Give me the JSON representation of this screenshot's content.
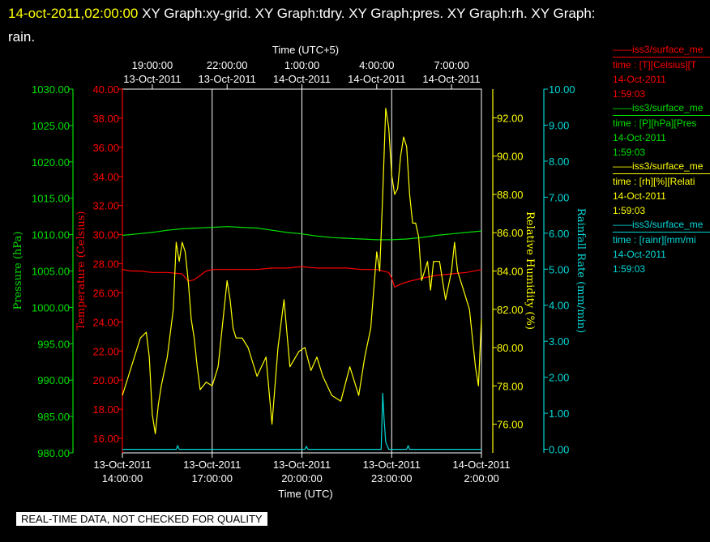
{
  "header": {
    "timestamp": "14-oct-2011,02:00:00",
    "titles": "XY Graph:xy-grid.  XY Graph:tdry.  XY Graph:pres.  XY Graph:rh.  XY Graph:",
    "titles_cont": "rain."
  },
  "footer_badge": "REAL-TIME DATA, NOT CHECKED FOR QUALITY",
  "colors": {
    "pressure": "#00e000",
    "temperature": "#ff0000",
    "humidity": "#ffff00",
    "rain": "#00d8d8",
    "grid": "#ffffff",
    "background": "#000000"
  },
  "legend": [
    {
      "line1": "iss3/surface_me",
      "line2": "time : [T][Celsius][T",
      "line3": "14-Oct-2011",
      "line4": "1:59:03",
      "color": "#ff0000"
    },
    {
      "line1": "iss3/surface_me",
      "line2": "time : [P][hPa][Pres",
      "line3": "14-Oct-2011",
      "line4": "1:59:03",
      "color": "#00e000"
    },
    {
      "line1": "iss3/surface_me",
      "line2": "time : [rh][%][Relati",
      "line3": "14-Oct-2011",
      "line4": "1:59:03",
      "color": "#ffff00"
    },
    {
      "line1": "iss3/surface_me",
      "line2": "time : [rainr][mm/mi",
      "line3": "14-Oct-2011",
      "line4": "1:59:03",
      "color": "#00d8d8"
    }
  ],
  "chart_data": {
    "type": "line",
    "top_axis": {
      "label": "Time (UTC+5)",
      "ticks": [
        [
          "19:00:00",
          "13-Oct-2011"
        ],
        [
          "22:00:00",
          "13-Oct-2011"
        ],
        [
          "1:00:00",
          "14-Oct-2011"
        ],
        [
          "4:00:00",
          "14-Oct-2011"
        ],
        [
          "7:00:00",
          "14-Oct-2011"
        ]
      ]
    },
    "bottom_axis": {
      "label": "Time (UTC)",
      "ticks": [
        [
          "13-Oct-2011",
          "14:00:00"
        ],
        [
          "13-Oct-2011",
          "17:00:00"
        ],
        [
          "13-Oct-2011",
          "20:00:00"
        ],
        [
          "13-Oct-2011",
          "23:00:00"
        ],
        [
          "14-Oct-2011",
          "2:00:00"
        ]
      ],
      "xlim": [
        0,
        12
      ]
    },
    "axes": {
      "pressure": {
        "label": "Pressure (hPa)",
        "ylim": [
          980,
          1030
        ],
        "ticks": [
          "980.00",
          "985.00",
          "990.00",
          "995.00",
          "1000.00",
          "1005.00",
          "1010.00",
          "1015.00",
          "1020.00",
          "1025.00",
          "1030.00"
        ]
      },
      "temperature": {
        "label": "Temperature (Celsius)",
        "ylim": [
          15,
          40
        ],
        "ticks": [
          "16.00",
          "18.00",
          "20.00",
          "22.00",
          "24.00",
          "26.00",
          "28.00",
          "30.00",
          "32.00",
          "34.00",
          "36.00",
          "38.00",
          "40.00"
        ]
      },
      "humidity": {
        "label": "Relative Humidity (%)",
        "ylim": [
          74.5,
          93.5
        ],
        "ticks": [
          "76.00",
          "78.00",
          "80.00",
          "82.00",
          "84.00",
          "86.00",
          "88.00",
          "90.00",
          "92.00"
        ]
      },
      "rain": {
        "label": "Rainfall Rate (mm/min)",
        "ylim": [
          -0.1,
          10
        ],
        "ticks": [
          "0.00",
          "1.00",
          "2.00",
          "3.00",
          "4.00",
          "5.00",
          "6.00",
          "7.00",
          "8.00",
          "9.00",
          "10.00"
        ]
      }
    },
    "grid_x": [
      3,
      6,
      9
    ],
    "series": [
      {
        "key": "pressure",
        "x": [
          0,
          0.5,
          1,
          1.5,
          2,
          2.5,
          3,
          3.5,
          4,
          4.5,
          5,
          5.5,
          6,
          6.5,
          7,
          7.5,
          8,
          8.5,
          9,
          9.5,
          10,
          10.5,
          11,
          11.5,
          12
        ],
        "y": [
          1009.9,
          1010.1,
          1010.3,
          1010.6,
          1010.8,
          1010.9,
          1011.0,
          1011.1,
          1011.0,
          1010.9,
          1010.6,
          1010.3,
          1010.1,
          1009.8,
          1009.6,
          1009.5,
          1009.4,
          1009.3,
          1009.3,
          1009.4,
          1009.6,
          1009.9,
          1010.1,
          1010.3,
          1010.5
        ]
      },
      {
        "key": "temperature",
        "x": [
          0,
          0.3,
          0.6,
          1,
          1.5,
          2,
          2.2,
          2.4,
          2.6,
          2.8,
          3,
          3.5,
          4,
          4.5,
          5,
          5.5,
          6,
          6.5,
          7,
          7.5,
          8,
          8.5,
          8.9,
          9,
          9.1,
          9.3,
          9.6,
          10,
          10.5,
          11,
          11.5,
          12
        ],
        "y": [
          27.6,
          27.5,
          27.5,
          27.4,
          27.4,
          27.3,
          26.8,
          26.9,
          27.2,
          27.5,
          27.6,
          27.6,
          27.6,
          27.6,
          27.7,
          27.7,
          27.8,
          27.7,
          27.7,
          27.7,
          27.6,
          27.6,
          27.4,
          27.0,
          26.4,
          26.6,
          26.8,
          27.0,
          27.2,
          27.3,
          27.4,
          27.6
        ]
      },
      {
        "key": "humidity",
        "x": [
          0,
          0.2,
          0.4,
          0.6,
          0.8,
          0.9,
          1.0,
          1.1,
          1.2,
          1.3,
          1.5,
          1.7,
          1.8,
          1.9,
          2.0,
          2.1,
          2.2,
          2.3,
          2.4,
          2.5,
          2.6,
          2.8,
          3.0,
          3.2,
          3.4,
          3.5,
          3.6,
          3.7,
          3.8,
          4.0,
          4.2,
          4.5,
          4.8,
          5.0,
          5.2,
          5.4,
          5.6,
          5.9,
          6.1,
          6.3,
          6.5,
          6.7,
          7.0,
          7.3,
          7.6,
          7.9,
          8.1,
          8.3,
          8.5,
          8.6,
          8.7,
          8.8,
          8.9,
          9.0,
          9.1,
          9.2,
          9.3,
          9.4,
          9.5,
          9.6,
          9.7,
          9.8,
          9.9,
          10.0,
          10.1,
          10.2,
          10.3,
          10.4,
          10.6,
          10.8,
          11.0,
          11.1,
          11.2,
          11.4,
          11.6,
          11.8,
          11.9,
          12.0
        ],
        "y": [
          77.5,
          78.5,
          79.5,
          80.5,
          80.8,
          79.5,
          76.5,
          75.5,
          77.0,
          78.0,
          79.5,
          82.0,
          85.5,
          84.5,
          85.5,
          85.0,
          83.5,
          81.5,
          80.5,
          79.0,
          77.8,
          78.2,
          78.0,
          79.0,
          82.0,
          83.5,
          82.5,
          81.0,
          80.5,
          80.5,
          80.0,
          78.5,
          79.5,
          76.0,
          80.0,
          82.5,
          79.0,
          79.8,
          80.0,
          78.8,
          79.5,
          78.5,
          77.5,
          77.2,
          79.0,
          77.5,
          79.5,
          81.0,
          85.0,
          84.0,
          88.0,
          92.5,
          91.5,
          89.0,
          88.0,
          88.3,
          90.0,
          91.0,
          90.5,
          88.0,
          86.5,
          86.5,
          85.8,
          83.5,
          84.0,
          84.5,
          83.0,
          84.5,
          84.5,
          82.5,
          84.0,
          85.5,
          84.0,
          83.0,
          82.0,
          79.0,
          78.0,
          81.5
        ]
      },
      {
        "key": "rain",
        "x": [
          0,
          1.8,
          1.85,
          1.9,
          6.1,
          6.15,
          6.2,
          8.5,
          8.65,
          8.7,
          8.75,
          8.8,
          8.9,
          9.0,
          9.5,
          9.55,
          9.6,
          12.0
        ],
        "y": [
          0,
          0,
          0.1,
          0,
          0,
          0.08,
          0,
          0,
          0,
          1.55,
          0.8,
          0.2,
          0,
          0,
          0,
          0.1,
          0,
          0
        ]
      }
    ]
  }
}
